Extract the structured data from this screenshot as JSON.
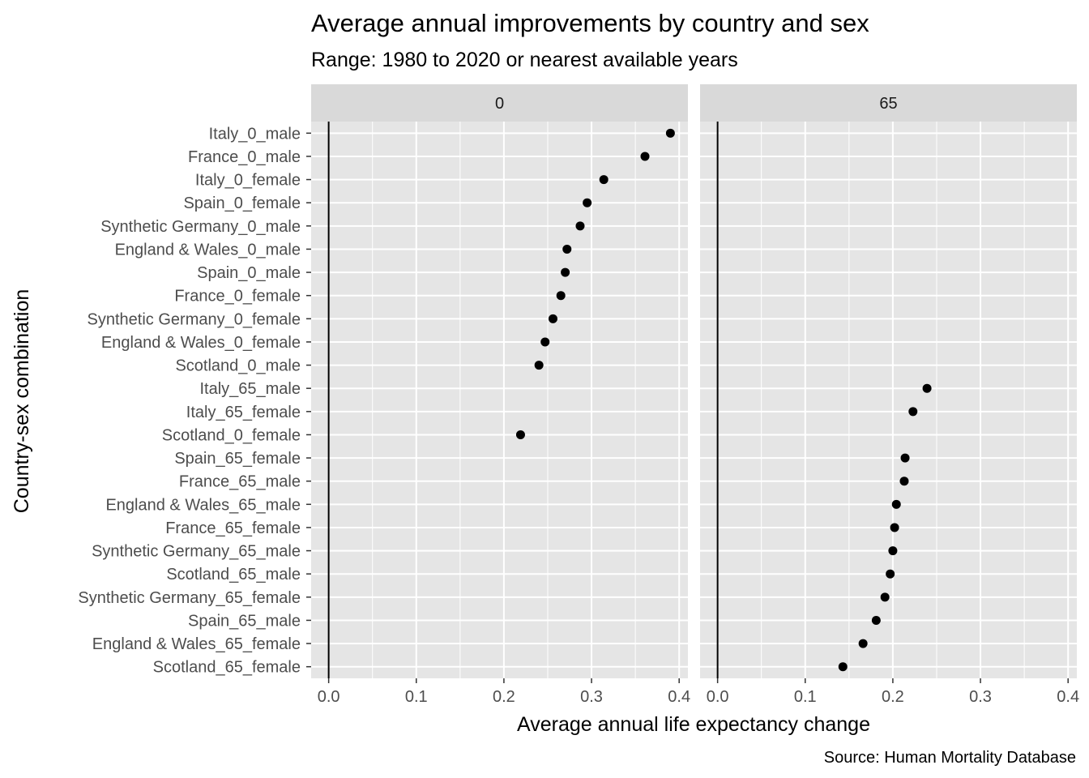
{
  "chart_data": {
    "type": "scatter",
    "title": "Average annual improvements by country and sex",
    "subtitle": "Range: 1980 to 2020 or nearest available years",
    "xlabel": "Average annual life expectancy change",
    "ylabel": "Country-sex combination",
    "caption": "Source: Human Mortality Database",
    "xlim": [
      -0.02,
      0.41
    ],
    "x_ticks": [
      0.0,
      0.1,
      0.2,
      0.3,
      0.4
    ],
    "x_tick_labels": [
      "0.0",
      "0.1",
      "0.2",
      "0.3",
      "0.4"
    ],
    "reference_line_x": 0,
    "grid": true,
    "categories": [
      "Italy_0_male",
      "France_0_male",
      "Italy_0_female",
      "Spain_0_female",
      "Synthetic Germany_0_male",
      "England & Wales_0_male",
      "Spain_0_male",
      "France_0_female",
      "Synthetic Germany_0_female",
      "England & Wales_0_female",
      "Scotland_0_male",
      "Italy_65_male",
      "Italy_65_female",
      "Scotland_0_female",
      "Spain_65_female",
      "France_65_male",
      "England & Wales_65_male",
      "France_65_female",
      "Synthetic Germany_65_male",
      "Scotland_65_male",
      "Synthetic Germany_65_female",
      "Spain_65_male",
      "England & Wales_65_female",
      "Scotland_65_female"
    ],
    "panels": [
      {
        "label": "0",
        "points": [
          {
            "category": "Italy_0_male",
            "x": 0.39
          },
          {
            "category": "France_0_male",
            "x": 0.361
          },
          {
            "category": "Italy_0_female",
            "x": 0.314
          },
          {
            "category": "Spain_0_female",
            "x": 0.295
          },
          {
            "category": "Synthetic Germany_0_male",
            "x": 0.287
          },
          {
            "category": "England & Wales_0_male",
            "x": 0.272
          },
          {
            "category": "Spain_0_male",
            "x": 0.27
          },
          {
            "category": "France_0_female",
            "x": 0.265
          },
          {
            "category": "Synthetic Germany_0_female",
            "x": 0.256
          },
          {
            "category": "England & Wales_0_female",
            "x": 0.247
          },
          {
            "category": "Scotland_0_male",
            "x": 0.24
          },
          {
            "category": "Scotland_0_female",
            "x": 0.219
          }
        ]
      },
      {
        "label": "65",
        "points": [
          {
            "category": "Italy_65_male",
            "x": 0.239
          },
          {
            "category": "Italy_65_female",
            "x": 0.223
          },
          {
            "category": "Spain_65_female",
            "x": 0.214
          },
          {
            "category": "France_65_male",
            "x": 0.213
          },
          {
            "category": "England & Wales_65_male",
            "x": 0.204
          },
          {
            "category": "France_65_female",
            "x": 0.202
          },
          {
            "category": "Synthetic Germany_65_male",
            "x": 0.2
          },
          {
            "category": "Scotland_65_male",
            "x": 0.197
          },
          {
            "category": "Synthetic Germany_65_female",
            "x": 0.191
          },
          {
            "category": "Spain_65_male",
            "x": 0.181
          },
          {
            "category": "England & Wales_65_female",
            "x": 0.166
          },
          {
            "category": "Scotland_65_female",
            "x": 0.143
          }
        ]
      }
    ],
    "colors": {
      "panel_background": "#e5e5e5",
      "strip_background": "#d9d9d9",
      "grid": "#ffffff",
      "point": "#000000",
      "reference_line": "#000000"
    }
  }
}
